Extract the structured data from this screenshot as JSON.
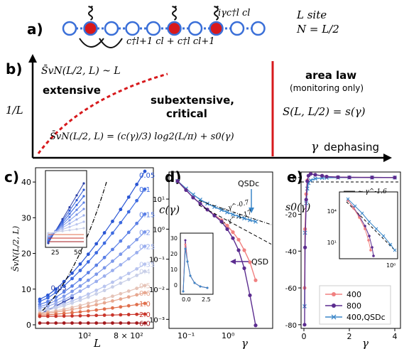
{
  "panel_a": {
    "label": "a)",
    "hop_term": "c†l+1 cl + c†l cl+1",
    "measure_term": "iγc†l cl",
    "sites_text": "L site",
    "filling_text": "N = L/2",
    "site_colors": [
      "#ffffff",
      "#d7191c",
      "#ffffff",
      "#ffffff",
      "#ffffff",
      "#d7191c",
      "#ffffff",
      "#d7191c",
      "#ffffff",
      "#ffffff"
    ],
    "accent_blue": "#3a6fd8",
    "accent_red": "#d7191c"
  },
  "panel_b": {
    "label": "b)",
    "ylabel": "1/L",
    "xlabel_symbol": "γ",
    "xlabel_word": "dephasing",
    "top_formula": "S̄vN(L/2, L) ~ L",
    "extensive": "extensive",
    "subextensive_1": "subextensive,",
    "subextensive_2": "critical",
    "critical_formula": "S̄vN(L/2, L) = (c(γ)/3) log2(L/π) + s0(γ)",
    "area_law": "area law",
    "monitoring_only": "(monitoring only)",
    "area_formula": "S(L, L/2) = s(γ)"
  },
  "chart_data": [
    {
      "panel": "c)",
      "type": "line",
      "xscale": "log",
      "xlabel": "L",
      "ylabel": "S̄vN(L/2, L)",
      "xticks": [
        "10²",
        "8 × 10²"
      ],
      "yticks": [
        0,
        10,
        20,
        30,
        40
      ],
      "ylim": [
        -1,
        44
      ],
      "series_labels": [
        "0.03",
        "0.05",
        "0.1",
        "0.15",
        "0.2",
        "0.25",
        "0.35",
        "0.4",
        "0.5",
        "0.6",
        "1.0",
        "2.0",
        "6.0"
      ],
      "label_colors": [
        "#2a3fa8",
        "#2a56d4",
        "#3d6ae0",
        "#5a7fe6",
        "#7b97ea",
        "#9aaeee",
        "#b8c4ef",
        "#c8cfe8",
        "#e6c3b7",
        "#e7a78f",
        "#e06f4c",
        "#c9352a",
        "#a3191c"
      ],
      "final_values": [
        8,
        43,
        38,
        31,
        26,
        22,
        17,
        15,
        11,
        9,
        6,
        3,
        0.5
      ],
      "inset_xticks": [
        25,
        50
      ]
    },
    {
      "panel": "d)",
      "type": "line",
      "xscale": "log",
      "yscale": "log",
      "xlabel": "γ",
      "ylabel": "c(γ)",
      "xticks": [
        "10⁻¹",
        "10⁰"
      ],
      "yticks": [
        "10⁻³",
        "10⁻²",
        "10⁻¹",
        "10⁰",
        "10¹"
      ],
      "annotations": [
        "QSDc",
        "QSD",
        "~ γ^-0.7",
        "~ γ^-1.17"
      ],
      "inset_yticks": [
        0,
        10,
        20,
        30
      ],
      "inset_xticks": [
        "0.0",
        "2.5"
      ]
    },
    {
      "panel": "e)",
      "type": "line",
      "xlabel": "γ",
      "ylabel": "s0(γ)",
      "xticks": [
        0,
        2,
        4
      ],
      "yticks": [
        0,
        -20,
        -40,
        -60,
        -80
      ],
      "ylim": [
        -82,
        3
      ],
      "annotations": [
        "~ γ^-1.6"
      ],
      "legend": [
        "400",
        "800",
        "400,QSDc"
      ],
      "legend_colors": [
        "#f08080",
        "#5b2c8f",
        "#3a86c8"
      ],
      "inset_yticks": [
        "10⁴",
        "10¹"
      ],
      "inset_xticks": [
        "10⁰"
      ]
    }
  ]
}
